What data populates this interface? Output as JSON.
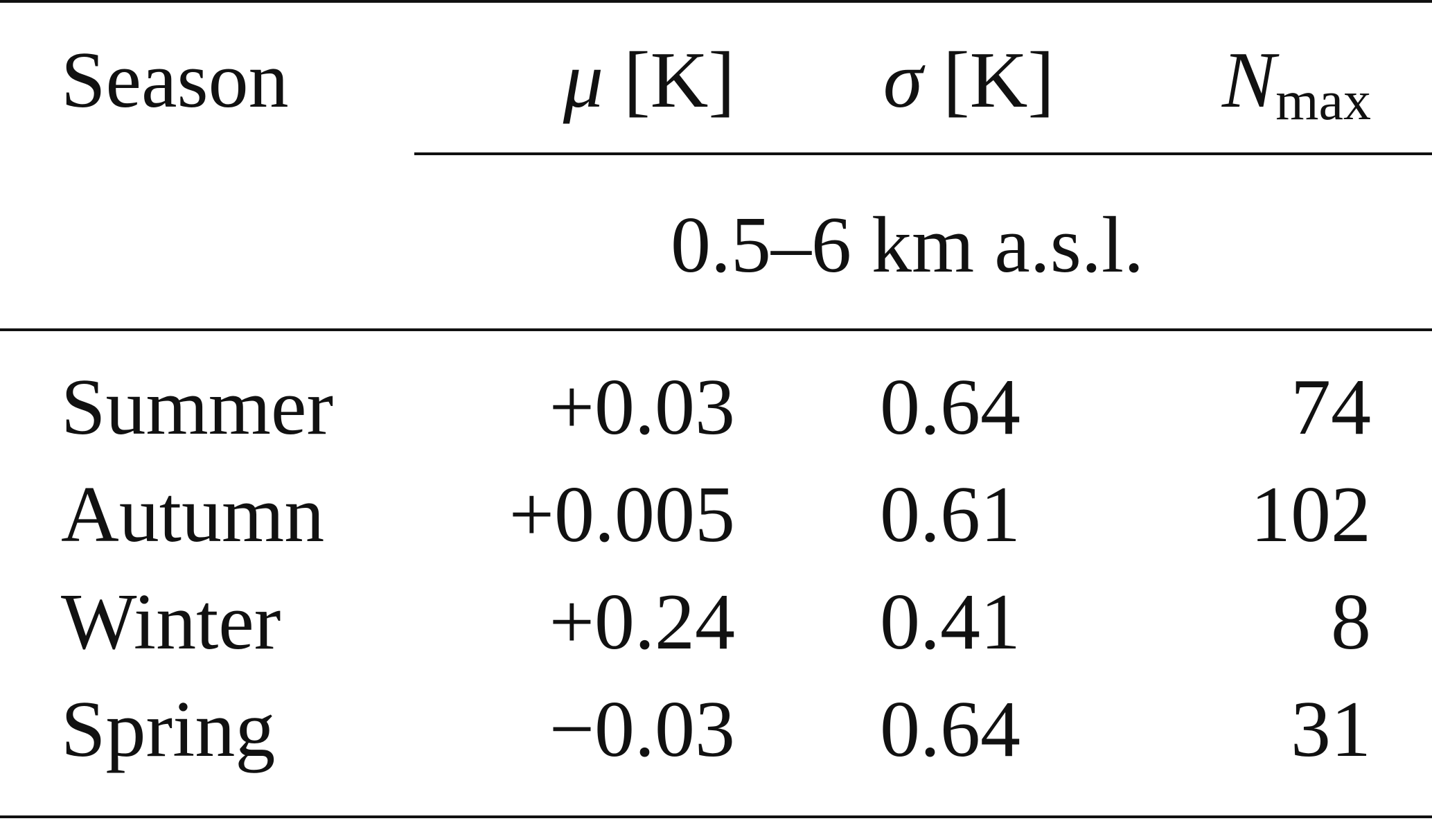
{
  "table": {
    "header": {
      "season": "Season",
      "mu_symbol": "μ",
      "mu_unit": "[K]",
      "sigma_symbol": "σ",
      "sigma_unit": "[K]",
      "n_symbol": "N",
      "n_subscript": "max"
    },
    "section_label": "0.5–6 km a.s.l.",
    "rows": [
      {
        "season": "Summer",
        "mu": "+0.03",
        "sigma": "0.64",
        "n_max": "74"
      },
      {
        "season": "Autumn",
        "mu": "+0.005",
        "sigma": "0.61",
        "n_max": "102"
      },
      {
        "season": "Winter",
        "mu": "+0.24",
        "sigma": "0.41",
        "n_max": "8"
      },
      {
        "season": "Spring",
        "mu": "−0.03",
        "sigma": "0.64",
        "n_max": "31"
      }
    ]
  }
}
